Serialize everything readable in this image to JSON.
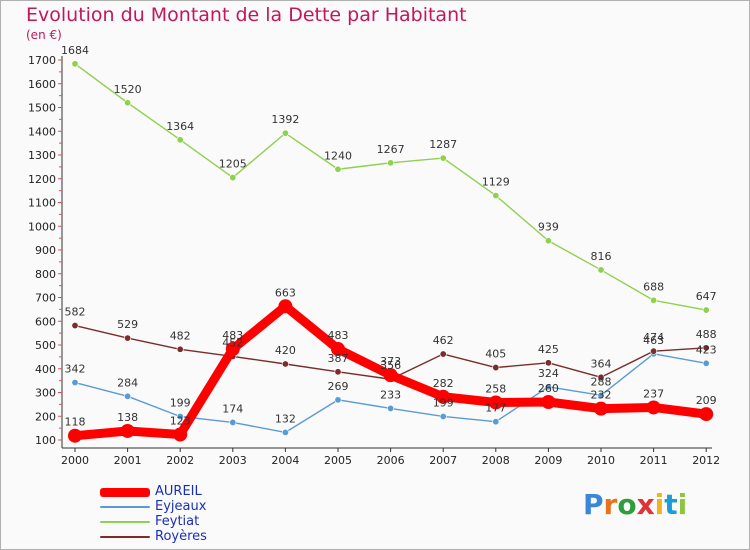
{
  "chart_data": {
    "type": "line",
    "title": "Evolution du Montant de la Dette par Habitant",
    "subtitle": "(en €)",
    "x": [
      "2000",
      "2001",
      "2002",
      "2003",
      "2004",
      "2005",
      "2006",
      "2007",
      "2008",
      "2009",
      "2010",
      "2011",
      "2012"
    ],
    "ylim": [
      100,
      1700
    ],
    "yticks": [
      100,
      200,
      300,
      400,
      500,
      600,
      700,
      800,
      900,
      1000,
      1100,
      1200,
      1300,
      1400,
      1500,
      1600,
      1700
    ],
    "grid": false,
    "legend_position": "bottom-left",
    "series": [
      {
        "name": "AUREIL",
        "color": "#ff0000",
        "values": [
          118,
          138,
          123,
          483,
          663,
          483,
          373,
          282,
          258,
          260,
          232,
          237,
          209
        ]
      },
      {
        "name": "Eyjeaux",
        "color": "#5b9bd5",
        "values": [
          342,
          284,
          199,
          174,
          132,
          269,
          233,
          199,
          177,
          324,
          288,
          463,
          423
        ]
      },
      {
        "name": "Feytiat",
        "color": "#8fd14f",
        "values": [
          1684,
          1520,
          1364,
          1205,
          1392,
          1240,
          1267,
          1287,
          1129,
          939,
          816,
          688,
          647
        ]
      },
      {
        "name": "Royères",
        "color": "#7b2c2c",
        "values": [
          582,
          529,
          482,
          452,
          420,
          387,
          356,
          462,
          405,
          425,
          364,
          474,
          488
        ]
      }
    ]
  },
  "logo": {
    "p": "P",
    "r": "r",
    "o": "o",
    "x": "x",
    "i": "i",
    "t": "t",
    "i2": "i"
  }
}
